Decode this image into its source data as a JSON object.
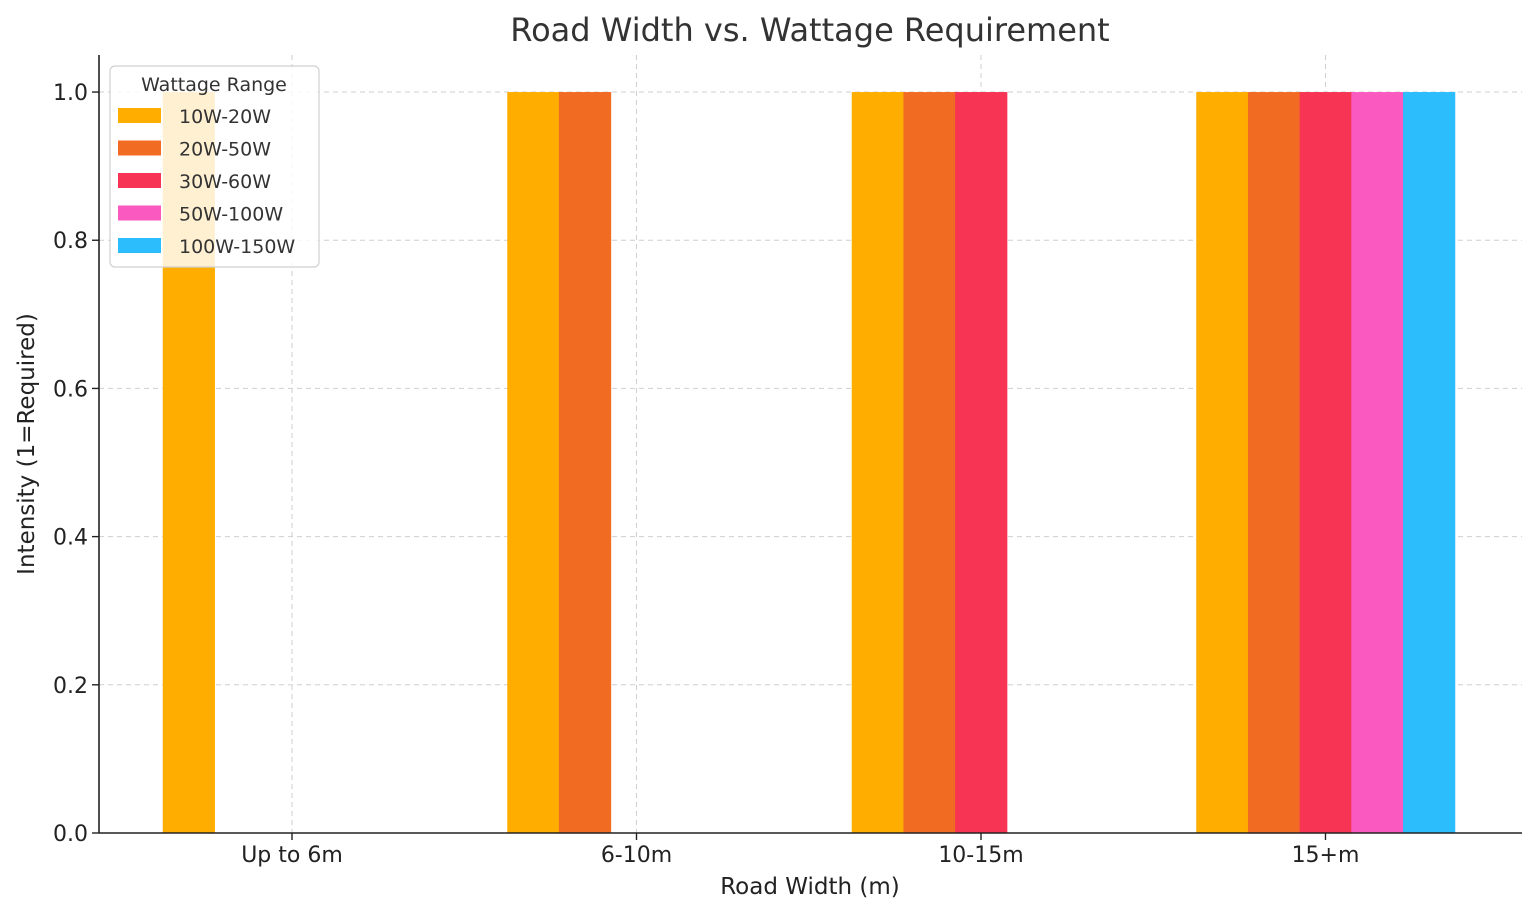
{
  "chart_data": {
    "type": "bar",
    "title": "Road Width vs. Wattage Requirement",
    "xlabel": "Road Width (m)",
    "ylabel": "Intensity (1=Required)",
    "ylim": [
      0,
      1.05
    ],
    "yticks": [
      "0.0",
      "0.2",
      "0.4",
      "0.6",
      "0.8",
      "1.0"
    ],
    "grid": true,
    "legend_title": "Wattage Range",
    "legend_position": "top-left",
    "categories": [
      "Up to 6m",
      "6-10m",
      "10-15m",
      "15+m"
    ],
    "series": [
      {
        "name": "10W-20W",
        "color": "#FFAE00",
        "values": [
          1,
          1,
          1,
          1
        ]
      },
      {
        "name": "20W-50W",
        "color": "#F26B22",
        "values": [
          0,
          1,
          1,
          1
        ]
      },
      {
        "name": "30W-60W",
        "color": "#F73454",
        "values": [
          0,
          0,
          1,
          1
        ]
      },
      {
        "name": "50W-100W",
        "color": "#FA5AC0",
        "values": [
          0,
          0,
          0,
          1
        ]
      },
      {
        "name": "100W-150W",
        "color": "#2BBDFC",
        "values": [
          0,
          0,
          0,
          1
        ]
      }
    ]
  }
}
